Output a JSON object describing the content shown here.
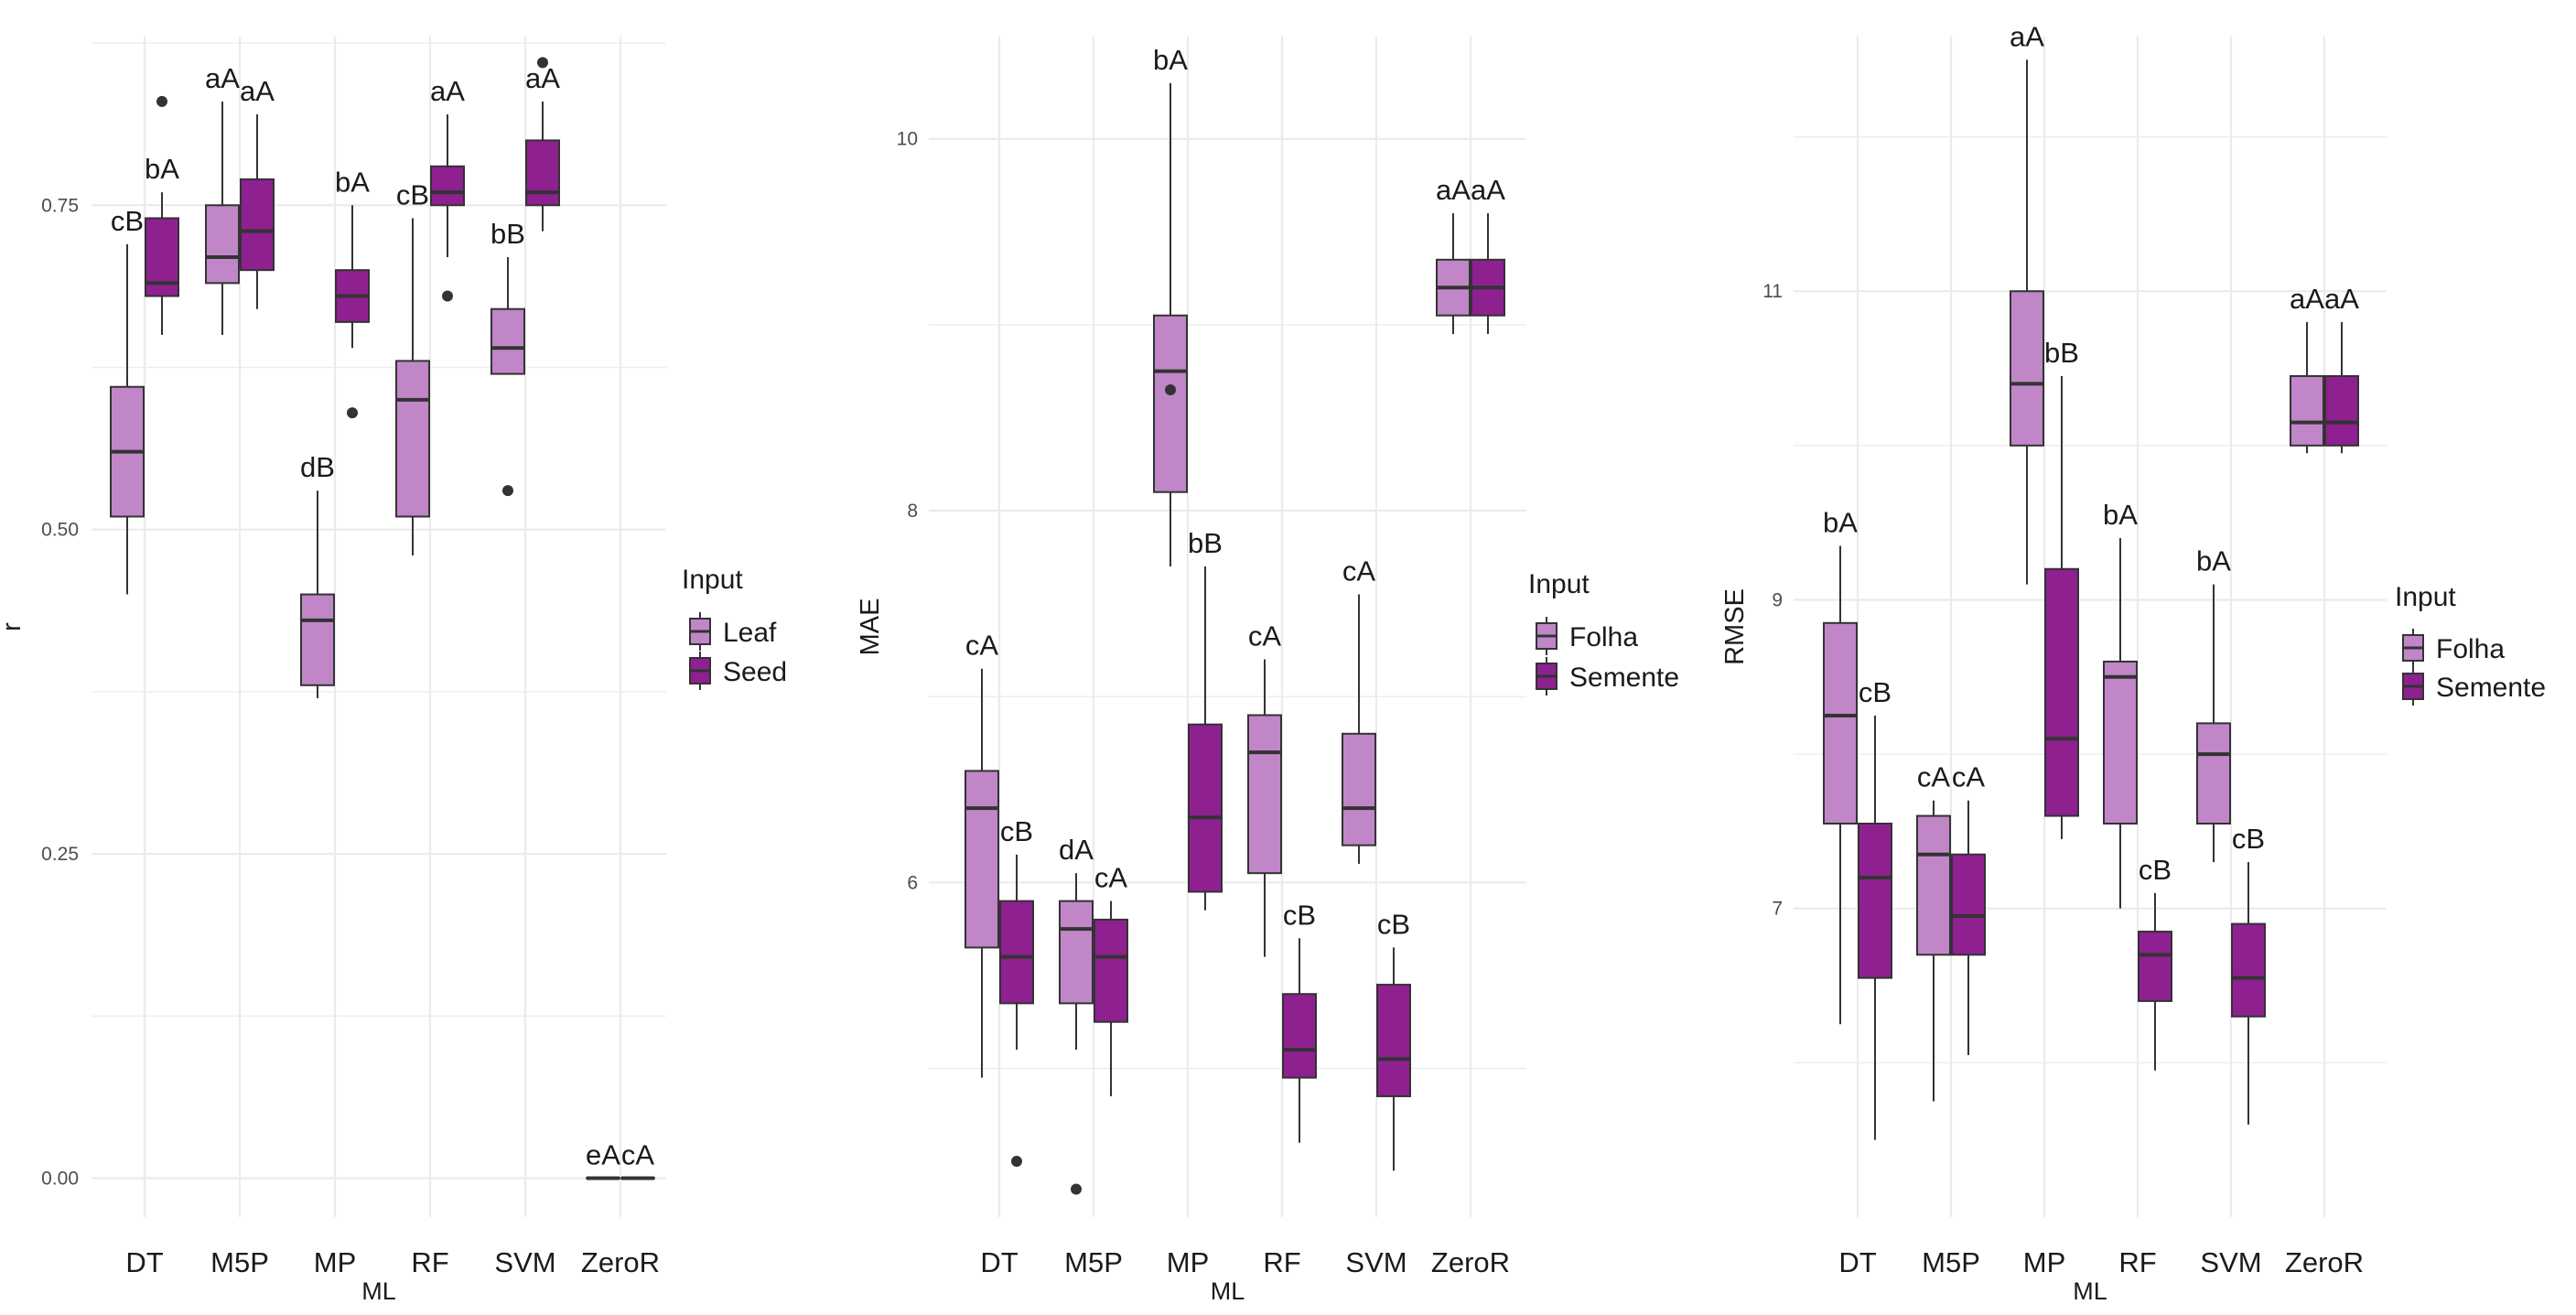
{
  "colors": {
    "Leaf": "#c086c8",
    "Seed": "#8e2090",
    "grid": "#ebebeb",
    "line": "#333333"
  },
  "chart_data": [
    {
      "type": "box",
      "ylabel": "r",
      "xlabel": "ML",
      "ylim": [
        -0.03,
        0.88
      ],
      "yticks": [
        0,
        0.25,
        0.5,
        0.75
      ],
      "ytick_labels": [
        "0.00",
        "0.25",
        "0.50",
        "0.75"
      ],
      "categories": [
        "DT",
        "M5P",
        "MP",
        "RF",
        "SVM",
        "ZeroR"
      ],
      "legend": {
        "title": "Input",
        "labels": [
          "Leaf",
          "Seed"
        ]
      },
      "series": [
        {
          "name": "Leaf",
          "color_key": "Leaf",
          "boxes": [
            {
              "min": 0.45,
              "q1": 0.51,
              "median": 0.56,
              "q3": 0.61,
              "max": 0.72,
              "outliers": [],
              "letter": "cB"
            },
            {
              "min": 0.65,
              "q1": 0.69,
              "median": 0.71,
              "q3": 0.75,
              "max": 0.83,
              "outliers": [],
              "letter": "aA"
            },
            {
              "min": 0.37,
              "q1": 0.38,
              "median": 0.43,
              "q3": 0.45,
              "max": 0.53,
              "outliers": [],
              "letter": "dB"
            },
            {
              "min": 0.48,
              "q1": 0.51,
              "median": 0.6,
              "q3": 0.63,
              "max": 0.74,
              "outliers": [],
              "letter": "cB"
            },
            {
              "min": 0.62,
              "q1": 0.62,
              "median": 0.64,
              "q3": 0.67,
              "max": 0.71,
              "outliers": [
                0.53
              ],
              "letter": "bB"
            },
            {
              "min": 0,
              "q1": 0,
              "median": 0,
              "q3": 0,
              "max": 0,
              "outliers": [],
              "letter": "eA"
            }
          ]
        },
        {
          "name": "Seed",
          "color_key": "Seed",
          "boxes": [
            {
              "min": 0.65,
              "q1": 0.68,
              "median": 0.69,
              "q3": 0.74,
              "max": 0.76,
              "outliers": [
                0.83
              ],
              "letter": "bA"
            },
            {
              "min": 0.67,
              "q1": 0.7,
              "median": 0.73,
              "q3": 0.77,
              "max": 0.82,
              "outliers": [],
              "letter": "aA"
            },
            {
              "min": 0.64,
              "q1": 0.66,
              "median": 0.68,
              "q3": 0.7,
              "max": 0.75,
              "outliers": [
                0.59
              ],
              "letter": "bA"
            },
            {
              "min": 0.71,
              "q1": 0.75,
              "median": 0.76,
              "q3": 0.78,
              "max": 0.82,
              "outliers": [
                0.68
              ],
              "letter": "aA"
            },
            {
              "min": 0.73,
              "q1": 0.75,
              "median": 0.76,
              "q3": 0.8,
              "max": 0.83,
              "outliers": [
                0.86
              ],
              "letter": "aA"
            },
            {
              "min": 0,
              "q1": 0,
              "median": 0,
              "q3": 0,
              "max": 0,
              "outliers": [],
              "letter": "cA"
            }
          ]
        }
      ]
    },
    {
      "type": "box",
      "ylabel": "MAE",
      "xlabel": "ML",
      "ylim": [
        4.2,
        10.55
      ],
      "yticks": [
        6,
        8,
        10
      ],
      "ytick_labels": [
        "6",
        "8",
        "10"
      ],
      "categories": [
        "DT",
        "M5P",
        "MP",
        "RF",
        "SVM",
        "ZeroR"
      ],
      "legend": {
        "title": "Input",
        "labels": [
          "Folha",
          "Semente"
        ]
      },
      "series": [
        {
          "name": "Folha",
          "color_key": "Leaf",
          "boxes": [
            {
              "min": 4.95,
              "q1": 5.65,
              "median": 6.4,
              "q3": 6.6,
              "max": 7.15,
              "outliers": [],
              "letter": "cA"
            },
            {
              "min": 5.1,
              "q1": 5.35,
              "median": 5.75,
              "q3": 5.9,
              "max": 6.05,
              "outliers": [
                4.35
              ],
              "letter": "dA"
            },
            {
              "min": 7.7,
              "q1": 8.1,
              "median": 8.75,
              "q3": 9.05,
              "max": 10.3,
              "outliers": [
                8.65
              ],
              "letter": "bA"
            },
            {
              "min": 5.6,
              "q1": 6.05,
              "median": 6.7,
              "q3": 6.9,
              "max": 7.2,
              "outliers": [],
              "letter": "cA"
            },
            {
              "min": 6.1,
              "q1": 6.2,
              "median": 6.4,
              "q3": 6.8,
              "max": 7.55,
              "outliers": [],
              "letter": "cA"
            },
            {
              "min": 8.95,
              "q1": 9.05,
              "median": 9.2,
              "q3": 9.35,
              "max": 9.6,
              "outliers": [],
              "letter": "aA"
            }
          ]
        },
        {
          "name": "Semente",
          "color_key": "Seed",
          "boxes": [
            {
              "min": 5.1,
              "q1": 5.35,
              "median": 5.6,
              "q3": 5.9,
              "max": 6.15,
              "outliers": [
                4.5
              ],
              "letter": "cB"
            },
            {
              "min": 4.85,
              "q1": 5.25,
              "median": 5.6,
              "q3": 5.8,
              "max": 5.9,
              "outliers": [],
              "letter": "cA"
            },
            {
              "min": 5.85,
              "q1": 5.95,
              "median": 6.35,
              "q3": 6.85,
              "max": 7.7,
              "outliers": [],
              "letter": "bB"
            },
            {
              "min": 4.6,
              "q1": 4.95,
              "median": 5.1,
              "q3": 5.4,
              "max": 5.7,
              "outliers": [],
              "letter": "cB"
            },
            {
              "min": 4.45,
              "q1": 4.85,
              "median": 5.05,
              "q3": 5.45,
              "max": 5.65,
              "outliers": [],
              "letter": "cB"
            },
            {
              "min": 8.95,
              "q1": 9.05,
              "median": 9.2,
              "q3": 9.35,
              "max": 9.6,
              "outliers": [],
              "letter": "aA"
            }
          ]
        }
      ]
    },
    {
      "type": "box",
      "ylabel": "RMSE",
      "xlabel": "ML",
      "ylim": [
        5.0,
        12.65
      ],
      "yticks": [
        7,
        9,
        11
      ],
      "ytick_labels": [
        "7",
        "9",
        "11"
      ],
      "categories": [
        "DT",
        "M5P",
        "MP",
        "RF",
        "SVM",
        "ZeroR"
      ],
      "legend": {
        "title": "Input",
        "labels": [
          "Folha",
          "Semente"
        ]
      },
      "series": [
        {
          "name": "Folha",
          "color_key": "Leaf",
          "boxes": [
            {
              "min": 6.25,
              "q1": 7.55,
              "median": 8.25,
              "q3": 8.85,
              "max": 9.35,
              "outliers": [],
              "letter": "bA"
            },
            {
              "min": 5.75,
              "q1": 6.7,
              "median": 7.35,
              "q3": 7.6,
              "max": 7.7,
              "outliers": [],
              "letter": "cA"
            },
            {
              "min": 9.1,
              "q1": 10.0,
              "median": 10.4,
              "q3": 11.0,
              "max": 12.5,
              "outliers": [],
              "letter": "aA"
            },
            {
              "min": 7.0,
              "q1": 7.55,
              "median": 8.5,
              "q3": 8.6,
              "max": 9.4,
              "outliers": [],
              "letter": "bA"
            },
            {
              "min": 7.3,
              "q1": 7.55,
              "median": 8.0,
              "q3": 8.2,
              "max": 9.1,
              "outliers": [],
              "letter": "bA"
            },
            {
              "min": 9.95,
              "q1": 10.0,
              "median": 10.15,
              "q3": 10.45,
              "max": 10.8,
              "outliers": [],
              "letter": "aA"
            }
          ]
        },
        {
          "name": "Semente",
          "color_key": "Seed",
          "boxes": [
            {
              "min": 5.5,
              "q1": 6.55,
              "median": 7.2,
              "q3": 7.55,
              "max": 8.25,
              "outliers": [],
              "letter": "cB"
            },
            {
              "min": 6.05,
              "q1": 6.7,
              "median": 6.95,
              "q3": 7.35,
              "max": 7.7,
              "outliers": [],
              "letter": "cA"
            },
            {
              "min": 7.45,
              "q1": 7.6,
              "median": 8.1,
              "q3": 9.2,
              "max": 10.45,
              "outliers": [],
              "letter": "bB"
            },
            {
              "min": 5.95,
              "q1": 6.4,
              "median": 6.7,
              "q3": 6.85,
              "max": 7.1,
              "outliers": [],
              "letter": "cB"
            },
            {
              "min": 5.6,
              "q1": 6.3,
              "median": 6.55,
              "q3": 6.9,
              "max": 7.3,
              "outliers": [],
              "letter": "cB"
            },
            {
              "min": 9.95,
              "q1": 10.0,
              "median": 10.15,
              "q3": 10.45,
              "max": 10.8,
              "outliers": [],
              "letter": "aA"
            }
          ]
        }
      ]
    }
  ]
}
